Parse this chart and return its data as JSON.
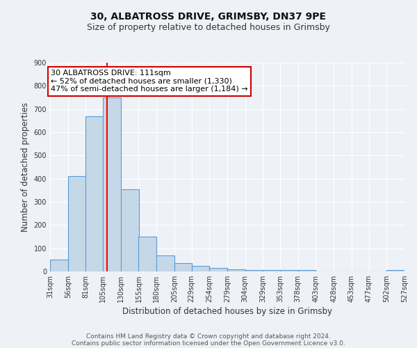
{
  "title": "30, ALBATROSS DRIVE, GRIMSBY, DN37 9PE",
  "subtitle": "Size of property relative to detached houses in Grimsby",
  "xlabel": "Distribution of detached houses by size in Grimsby",
  "ylabel": "Number of detached properties",
  "bin_edges": [
    31,
    56,
    81,
    105,
    130,
    155,
    180,
    205,
    229,
    254,
    279,
    304,
    329,
    353,
    378,
    403,
    428,
    453,
    477,
    502,
    527
  ],
  "bar_heights": [
    50,
    410,
    670,
    750,
    355,
    150,
    70,
    35,
    25,
    15,
    10,
    5,
    5,
    5,
    5,
    0,
    0,
    0,
    0,
    5
  ],
  "bar_color": "#c5d8e8",
  "bar_edge_color": "#5b9bd5",
  "property_size": 111,
  "vline_color": "#ff0000",
  "annotation_line1": "30 ALBATROSS DRIVE: 111sqm",
  "annotation_line2": "← 52% of detached houses are smaller (1,330)",
  "annotation_line3": "47% of semi-detached houses are larger (1,184) →",
  "annotation_box_color": "#ffffff",
  "annotation_box_edge_color": "#cc0000",
  "ylim": [
    0,
    900
  ],
  "yticks": [
    0,
    100,
    200,
    300,
    400,
    500,
    600,
    700,
    800,
    900
  ],
  "tick_labels": [
    "31sqm",
    "56sqm",
    "81sqm",
    "105sqm",
    "130sqm",
    "155sqm",
    "180sqm",
    "205sqm",
    "229sqm",
    "254sqm",
    "279sqm",
    "304sqm",
    "329sqm",
    "353sqm",
    "378sqm",
    "403sqm",
    "428sqm",
    "453sqm",
    "477sqm",
    "502sqm",
    "527sqm"
  ],
  "footer_line1": "Contains HM Land Registry data © Crown copyright and database right 2024.",
  "footer_line2": "Contains public sector information licensed under the Open Government Licence v3.0.",
  "bg_color": "#eef2f7",
  "grid_color": "#ffffff",
  "title_fontsize": 10,
  "subtitle_fontsize": 9,
  "axis_label_fontsize": 8.5,
  "tick_fontsize": 7,
  "footer_fontsize": 6.5,
  "annotation_fontsize": 8
}
